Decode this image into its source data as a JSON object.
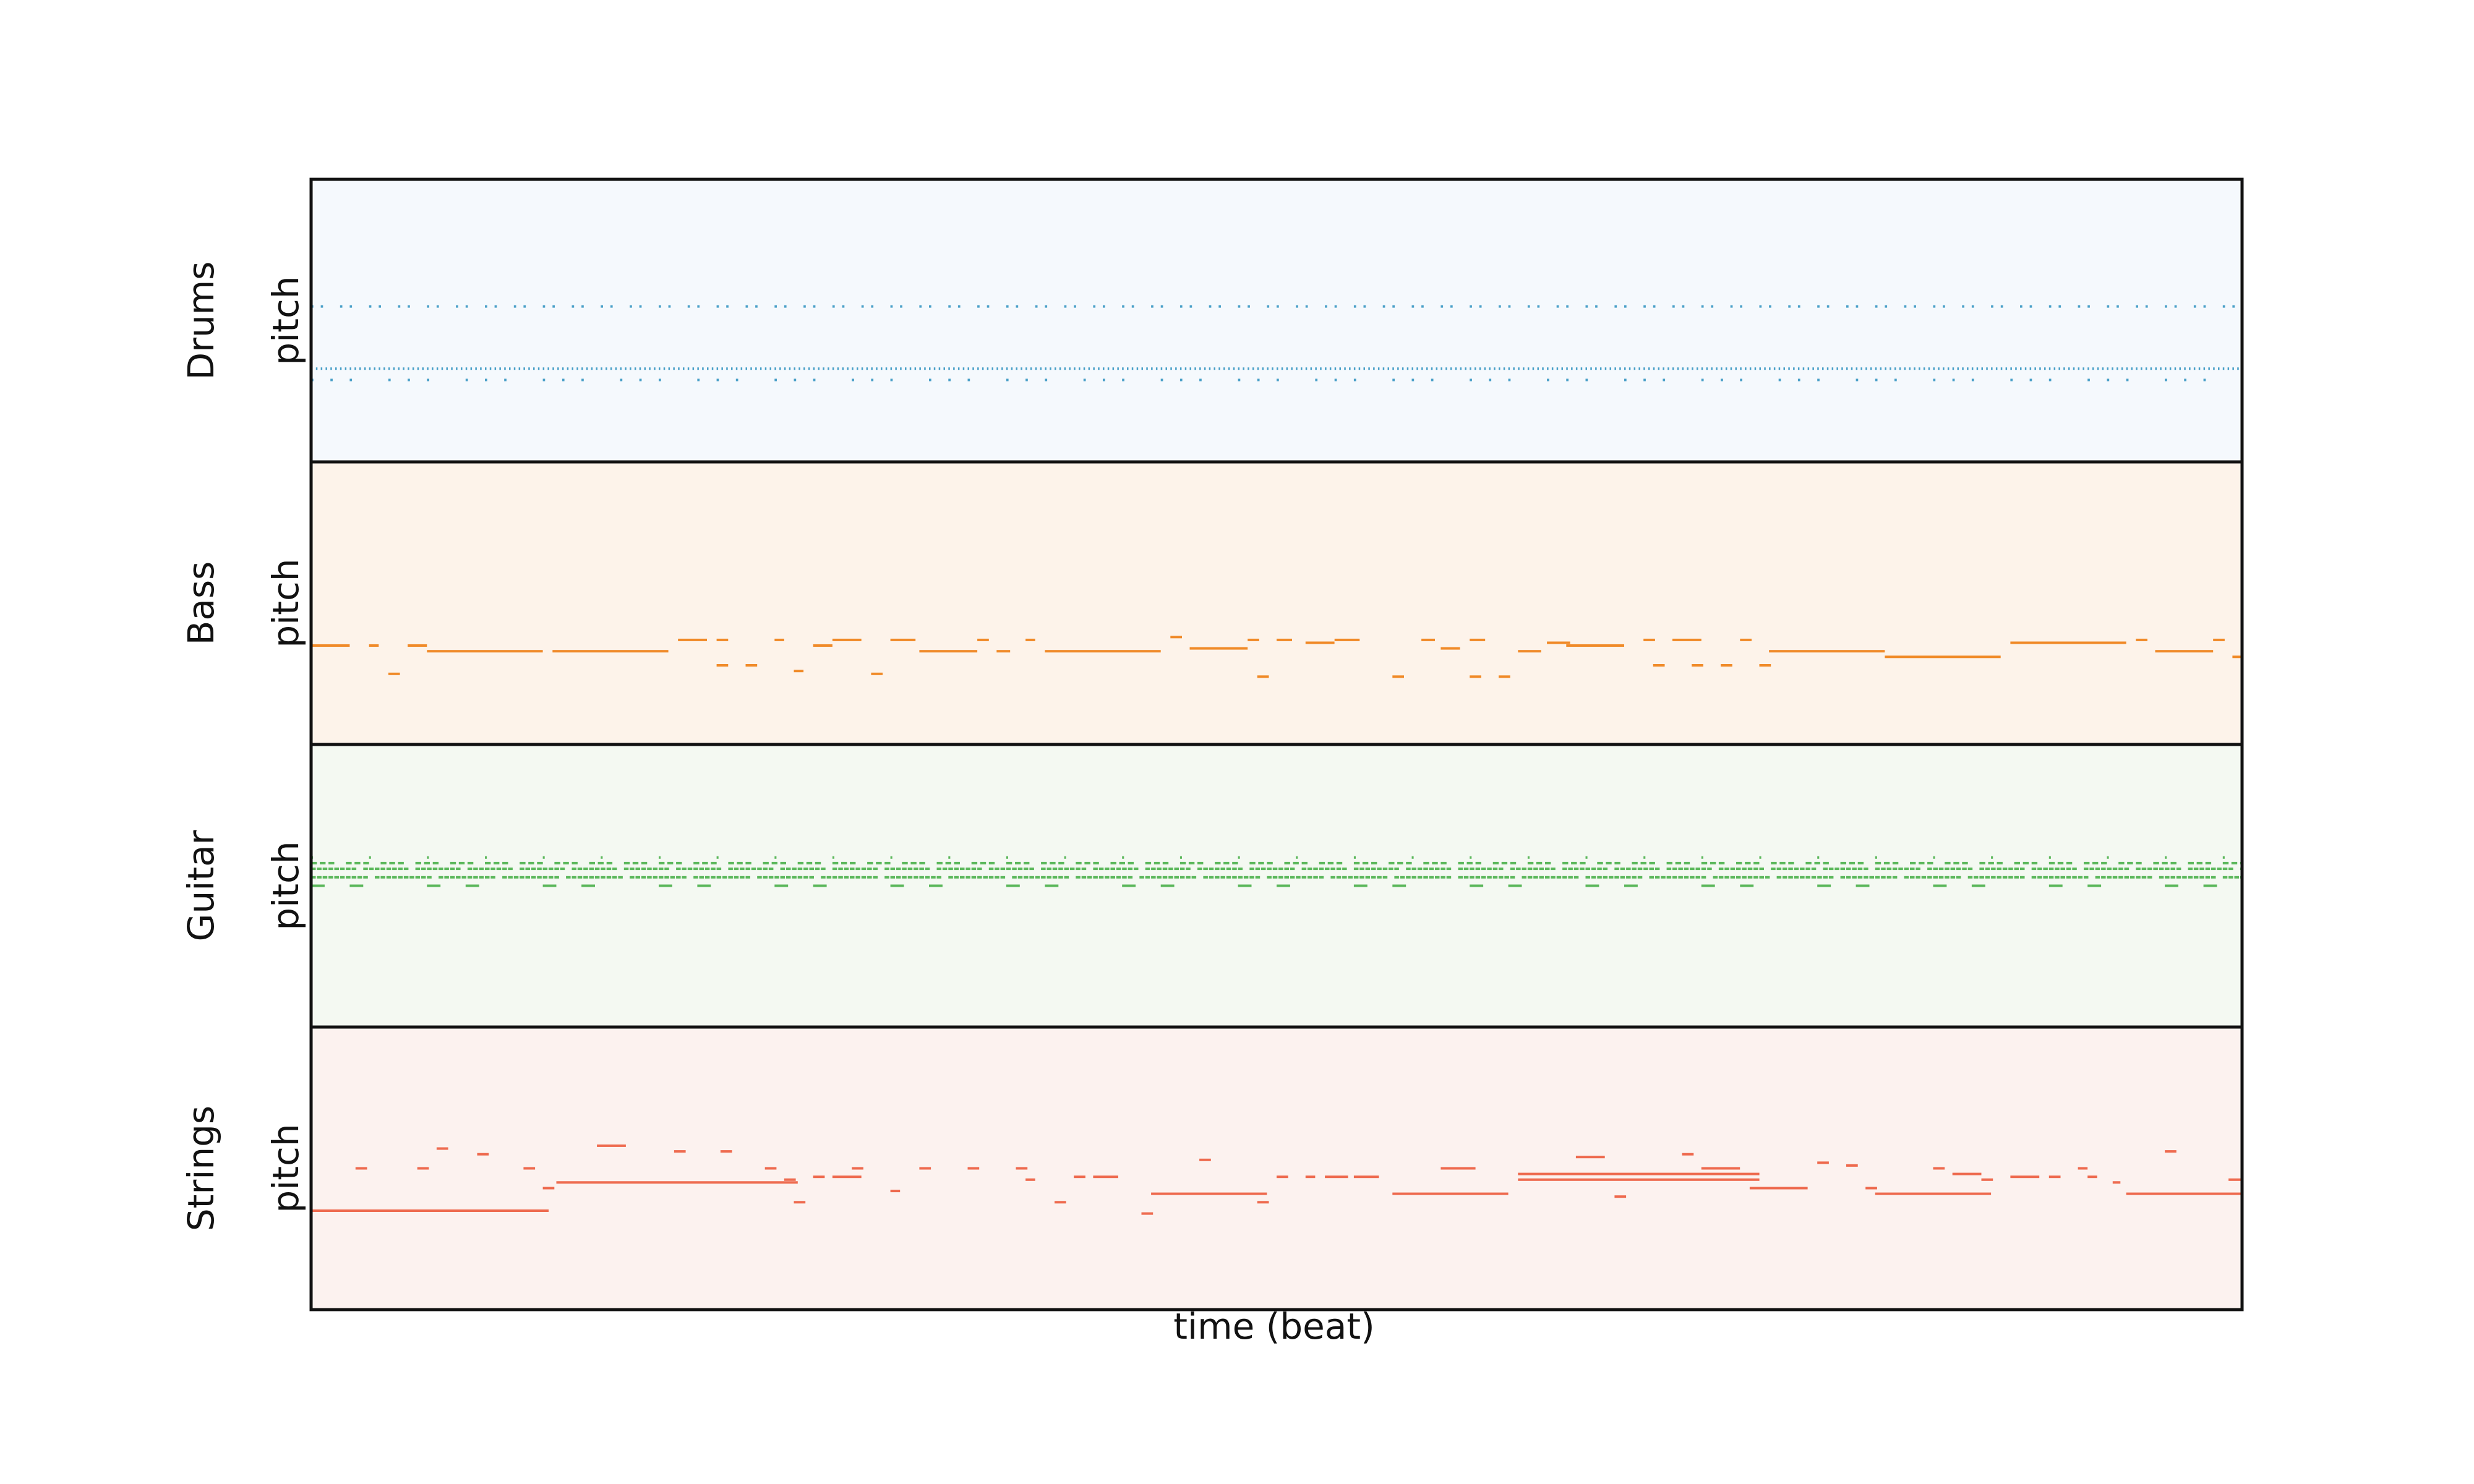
{
  "chart_data": {
    "type": "pianoroll",
    "xlabel": "time (beat)",
    "tracks": [
      {
        "name": "Drums",
        "ylabel": "pitch",
        "color": "#4aa0c8",
        "background": "#f5f9fd",
        "beats": 100,
        "pitch_range": [
          0,
          100
        ],
        "patterns": [
          {
            "pitch": 55,
            "start": 0,
            "end": 100,
            "step": 0.5,
            "duration": 0.12,
            "skip_every": 3
          },
          {
            "pitch": 33,
            "start": 0,
            "end": 100,
            "step": 0.25,
            "duration": 0.08,
            "skip_every": 0
          },
          {
            "pitch": 29,
            "start": 0,
            "end": 100,
            "step": 1.0,
            "duration": 0.12,
            "skip_every": 4
          }
        ]
      },
      {
        "name": "Bass",
        "ylabel": "pitch",
        "color": "#f08a28",
        "background": "#fdf3ea",
        "beats": 100,
        "pitch_range": [
          0,
          100
        ],
        "notes": [
          [
            0,
            2,
            35
          ],
          [
            3,
            0.5,
            35
          ],
          [
            4,
            0.6,
            25
          ],
          [
            5,
            1,
            35
          ],
          [
            6,
            6,
            33
          ],
          [
            12.5,
            6,
            33
          ],
          [
            19,
            1.5,
            37
          ],
          [
            21,
            0.6,
            37
          ],
          [
            21,
            0.6,
            28
          ],
          [
            22.5,
            0.6,
            28
          ],
          [
            24,
            0.5,
            37
          ],
          [
            25,
            0.5,
            26
          ],
          [
            26,
            1,
            35
          ],
          [
            27,
            1.5,
            37
          ],
          [
            29,
            0.6,
            25
          ],
          [
            30,
            1.3,
            37
          ],
          [
            31.5,
            3,
            33
          ],
          [
            34.5,
            0.6,
            37
          ],
          [
            35.5,
            0.7,
            33
          ],
          [
            37,
            0.5,
            37
          ],
          [
            38,
            6,
            33
          ],
          [
            44.5,
            0.6,
            38
          ],
          [
            45.5,
            3,
            34
          ],
          [
            48.5,
            0.6,
            37
          ],
          [
            49,
            0.6,
            24
          ],
          [
            50,
            0.8,
            37
          ],
          [
            51.5,
            1.5,
            36
          ],
          [
            53,
            1.3,
            37
          ],
          [
            56,
            0.6,
            24
          ],
          [
            57.5,
            0.7,
            37
          ],
          [
            58.5,
            1,
            34
          ],
          [
            60,
            0.8,
            37
          ],
          [
            60,
            0.6,
            24
          ],
          [
            61.5,
            0.6,
            24
          ],
          [
            62.5,
            1.2,
            33
          ],
          [
            64,
            1.2,
            36
          ],
          [
            65,
            3,
            35
          ],
          [
            69,
            0.6,
            37
          ],
          [
            69.5,
            0.6,
            28
          ],
          [
            70.5,
            1.5,
            37
          ],
          [
            71.5,
            0.6,
            28
          ],
          [
            73,
            0.6,
            28
          ],
          [
            74,
            0.6,
            37
          ],
          [
            75,
            0.6,
            28
          ],
          [
            75.5,
            6,
            33
          ],
          [
            81.5,
            6,
            31
          ],
          [
            88,
            6,
            36
          ],
          [
            94.5,
            0.6,
            37
          ],
          [
            95.5,
            3,
            33
          ],
          [
            98.5,
            0.6,
            37
          ],
          [
            99.5,
            0.5,
            31
          ]
        ]
      },
      {
        "name": "Guitar",
        "ylabel": "pitch",
        "color": "#5cb85c",
        "background": "#f4f9f2",
        "beats": 100,
        "pitch_range": [
          0,
          100
        ],
        "patterns": [
          {
            "pitch": 56,
            "start": 0,
            "end": 100,
            "step": 0.3,
            "duration": 0.24,
            "skip_every": 9
          },
          {
            "pitch": 53,
            "start": 0,
            "end": 100,
            "step": 0.3,
            "duration": 0.24,
            "skip_every": 11
          },
          {
            "pitch": 58,
            "start": 0,
            "end": 100,
            "step": 0.45,
            "duration": 0.3,
            "skip_every": 4
          },
          {
            "pitch": 50,
            "start": 0,
            "end": 100,
            "step": 2.0,
            "duration": 0.7,
            "skip_every": 3
          },
          {
            "pitch": 60,
            "start": 0,
            "end": 100,
            "step": 1.5,
            "duration": 0.1,
            "skip_every": 2
          }
        ]
      },
      {
        "name": "Strings",
        "ylabel": "pitch",
        "color": "#ee6a4e",
        "background": "#fcf2ef",
        "beats": 100,
        "pitch_range": [
          0,
          100
        ],
        "notes": [
          [
            0,
            12.3,
            35
          ],
          [
            2.3,
            0.6,
            50
          ],
          [
            5.5,
            0.6,
            50
          ],
          [
            6.5,
            0.6,
            57
          ],
          [
            8.6,
            0.6,
            55
          ],
          [
            11,
            0.6,
            50
          ],
          [
            12,
            0.6,
            43
          ],
          [
            12.7,
            12.5,
            45
          ],
          [
            14.8,
            1.5,
            58
          ],
          [
            18.8,
            0.6,
            56
          ],
          [
            21.2,
            0.6,
            56
          ],
          [
            23.5,
            0.6,
            50
          ],
          [
            24.5,
            0.6,
            46
          ],
          [
            25,
            0.6,
            38
          ],
          [
            26,
            0.6,
            47
          ],
          [
            27,
            1.5,
            47
          ],
          [
            28,
            0.6,
            50
          ],
          [
            30,
            0.5,
            42
          ],
          [
            31.5,
            0.6,
            50
          ],
          [
            34,
            0.6,
            50
          ],
          [
            36.5,
            0.6,
            50
          ],
          [
            37,
            0.5,
            46
          ],
          [
            38.5,
            0.6,
            38
          ],
          [
            39.5,
            0.6,
            47
          ],
          [
            40.5,
            1.3,
            47
          ],
          [
            43,
            0.6,
            34
          ],
          [
            43.5,
            6,
            41
          ],
          [
            46,
            0.6,
            53
          ],
          [
            49,
            0.6,
            38
          ],
          [
            50,
            0.6,
            47
          ],
          [
            51.5,
            0.5,
            47
          ],
          [
            52.5,
            1.2,
            47
          ],
          [
            54,
            1.3,
            47
          ],
          [
            56,
            6,
            41
          ],
          [
            58.5,
            1.8,
            50
          ],
          [
            62.5,
            12.5,
            48
          ],
          [
            62.5,
            12.5,
            46
          ],
          [
            65.5,
            1.5,
            54
          ],
          [
            67.5,
            0.6,
            40
          ],
          [
            71,
            0.6,
            55
          ],
          [
            72,
            2,
            50
          ],
          [
            74.5,
            3,
            43
          ],
          [
            78,
            0.6,
            52
          ],
          [
            79.5,
            0.6,
            51
          ],
          [
            80.5,
            0.6,
            43
          ],
          [
            81,
            6,
            41
          ],
          [
            84,
            0.6,
            50
          ],
          [
            85,
            1.5,
            48
          ],
          [
            86.5,
            0.6,
            46
          ],
          [
            88,
            1.5,
            47
          ],
          [
            90,
            0.6,
            47
          ],
          [
            91.5,
            0.5,
            50
          ],
          [
            92,
            0.5,
            47
          ],
          [
            93.3,
            0.4,
            45
          ],
          [
            94,
            6,
            41
          ],
          [
            96,
            0.6,
            56
          ],
          [
            99.3,
            0.7,
            46
          ]
        ]
      }
    ]
  }
}
